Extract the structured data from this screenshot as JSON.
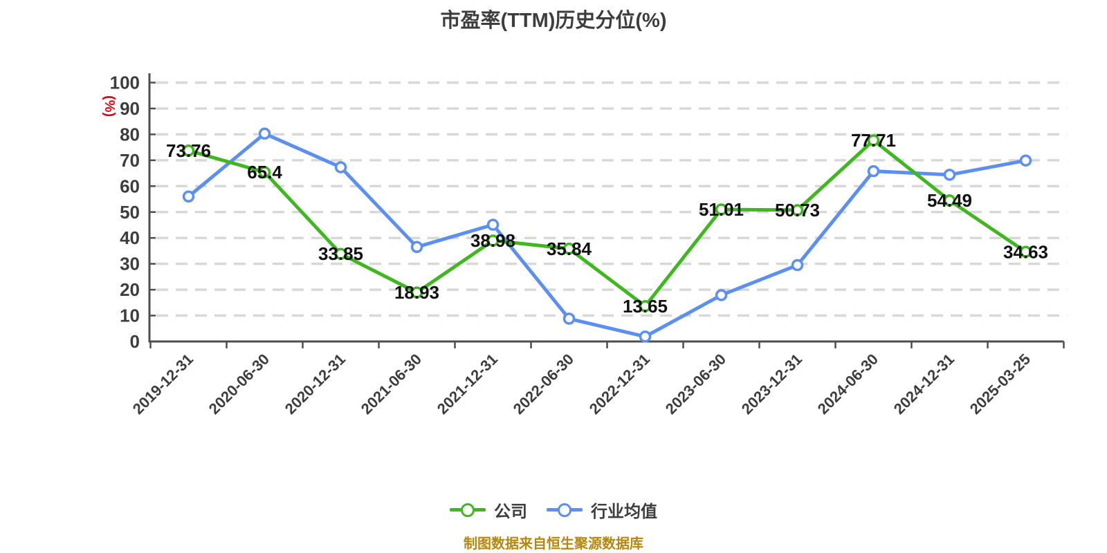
{
  "caption": "制图数据来自恒生聚源数据库",
  "colors": {
    "company_line": "#3fb71e",
    "industry_line": "#5b8ff2",
    "axis": "#4d4d4d",
    "gridline": "#d8d8d8",
    "title_text": "#3d3d3d",
    "tick_label_text": "#3d3d3d",
    "data_label_text": "#111111",
    "y_unit_label": "#e60012",
    "caption_text": "#b8860b",
    "marker_fill": "#ffffff"
  },
  "chart_data": {
    "type": "line",
    "title": "市盈率(TTM)历史分位(%)",
    "xlabel": "",
    "ylabel": "(%)",
    "ylim": [
      0,
      100
    ],
    "y_ticks": [
      0,
      10,
      20,
      30,
      40,
      50,
      60,
      70,
      80,
      90,
      100
    ],
    "grid": "horizontal-dashed",
    "legend_position": "bottom",
    "categories": [
      "2019-12-31",
      "2020-06-30",
      "2020-12-31",
      "2021-06-30",
      "2021-12-31",
      "2022-06-30",
      "2022-12-31",
      "2023-06-30",
      "2023-12-31",
      "2024-06-30",
      "2024-12-31",
      "2025-03-25"
    ],
    "series": [
      {
        "id": "company",
        "name": "公司",
        "color": "#3fb71e",
        "show_labels": true,
        "values": [
          73.76,
          65.4,
          33.85,
          18.93,
          38.98,
          35.84,
          13.65,
          51.01,
          50.73,
          77.71,
          54.49,
          34.63
        ],
        "labels": [
          "73.76",
          "65.4",
          "33.85",
          "18.93",
          "38.98",
          "35.84",
          "13.65",
          "51.01",
          "50.73",
          "77.71",
          "54.49",
          "34.63"
        ]
      },
      {
        "id": "industry-average",
        "name": "行业均值",
        "color": "#5b8ff2",
        "show_labels": false,
        "values": [
          56,
          80.3,
          67.3,
          36.5,
          45.1,
          8.8,
          1.9,
          17.9,
          29.5,
          65.8,
          64.4,
          69.9
        ],
        "labels": []
      }
    ]
  }
}
